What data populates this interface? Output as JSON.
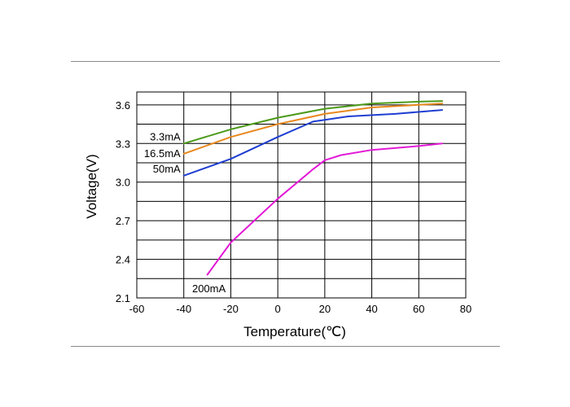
{
  "chart_data": {
    "type": "line",
    "title": "",
    "xlabel": "Temperature(℃)",
    "ylabel": "Voltage(V)",
    "xlim": [
      -60,
      80
    ],
    "ylim": [
      2.1,
      3.7
    ],
    "x_ticks": [
      "-60",
      "-40",
      "-20",
      "0",
      "20",
      "40",
      "60",
      "80"
    ],
    "y_ticks": [
      "2.1",
      "2.4",
      "2.7",
      "3.0",
      "3.3",
      "3.6"
    ],
    "grid": true,
    "series": [
      {
        "name": "3.3mA",
        "color": "#4c9a1a",
        "x": [
          -40,
          -20,
          0,
          20,
          40,
          60,
          70
        ],
        "y": [
          3.3,
          3.41,
          3.5,
          3.57,
          3.61,
          3.625,
          3.63
        ]
      },
      {
        "name": "16.5mA",
        "color": "#e8891e",
        "x": [
          -40,
          -20,
          0,
          20,
          40,
          60,
          70
        ],
        "y": [
          3.22,
          3.35,
          3.45,
          3.53,
          3.58,
          3.6,
          3.61
        ]
      },
      {
        "name": "50mA",
        "color": "#1f3ed1",
        "x": [
          -40,
          -20,
          0,
          15,
          30,
          50,
          70
        ],
        "y": [
          3.05,
          3.18,
          3.35,
          3.47,
          3.51,
          3.53,
          3.56
        ]
      },
      {
        "name": "200mA",
        "color": "#e21ad6",
        "x": [
          -30,
          -20,
          0,
          15,
          20,
          27,
          40,
          60,
          70
        ],
        "y": [
          2.28,
          2.53,
          2.87,
          3.1,
          3.17,
          3.21,
          3.25,
          3.28,
          3.3
        ]
      }
    ]
  }
}
